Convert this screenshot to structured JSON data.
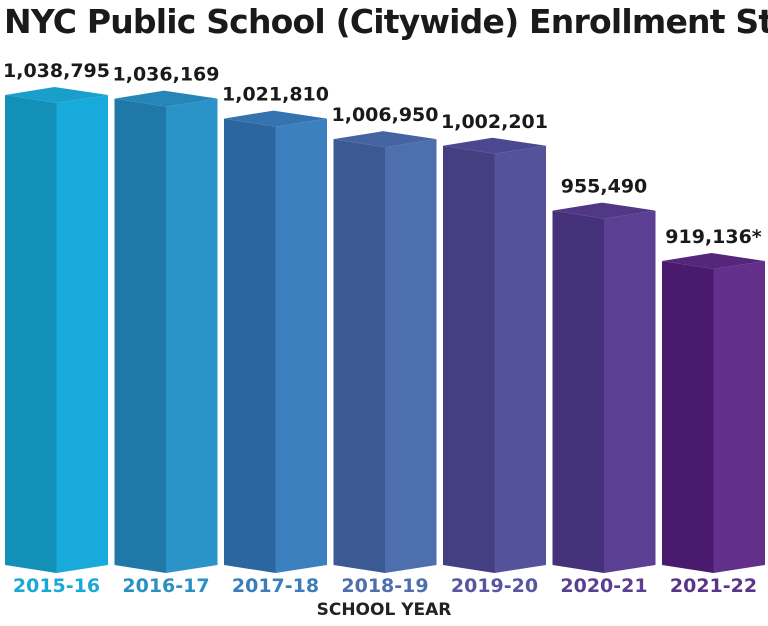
{
  "chart_data": {
    "type": "bar",
    "title": "NYC Public School (Citywide) Enrollment Stats:",
    "xlabel": "SCHOOL YEAR",
    "ylabel": "",
    "categories": [
      "2015-16",
      "2016-17",
      "2017-18",
      "2018-19",
      "2019-20",
      "2020-21",
      "2021-22"
    ],
    "values": [
      1038795,
      1036169,
      1021810,
      1006950,
      1002201,
      955490,
      919136
    ],
    "data_labels": [
      "1,038,795",
      "1,036,169",
      "1,021,810",
      "1,006,950",
      "1,002,201",
      "955,490",
      "919,136*"
    ],
    "ylim": [
      700000,
      1040000
    ],
    "grid": false,
    "colors": {
      "left": [
        "#1390b8",
        "#1f78a8",
        "#2b66a0",
        "#3b5a94",
        "#433f80",
        "#45307a",
        "#4a1a6e"
      ],
      "right": [
        "#18aadb",
        "#2a93c8",
        "#3d80bf",
        "#4d6fae",
        "#55529c",
        "#5a3f92",
        "#62308a"
      ],
      "top": [
        "#1a9fcc",
        "#2686b8",
        "#3473b0",
        "#4564a2",
        "#4c4890",
        "#503886",
        "#56257c"
      ],
      "label": [
        "#19a9d8",
        "#2a90c4",
        "#3b7dbb",
        "#4d6fae",
        "#5a55a0",
        "#5a3f92",
        "#5a3488"
      ]
    }
  }
}
